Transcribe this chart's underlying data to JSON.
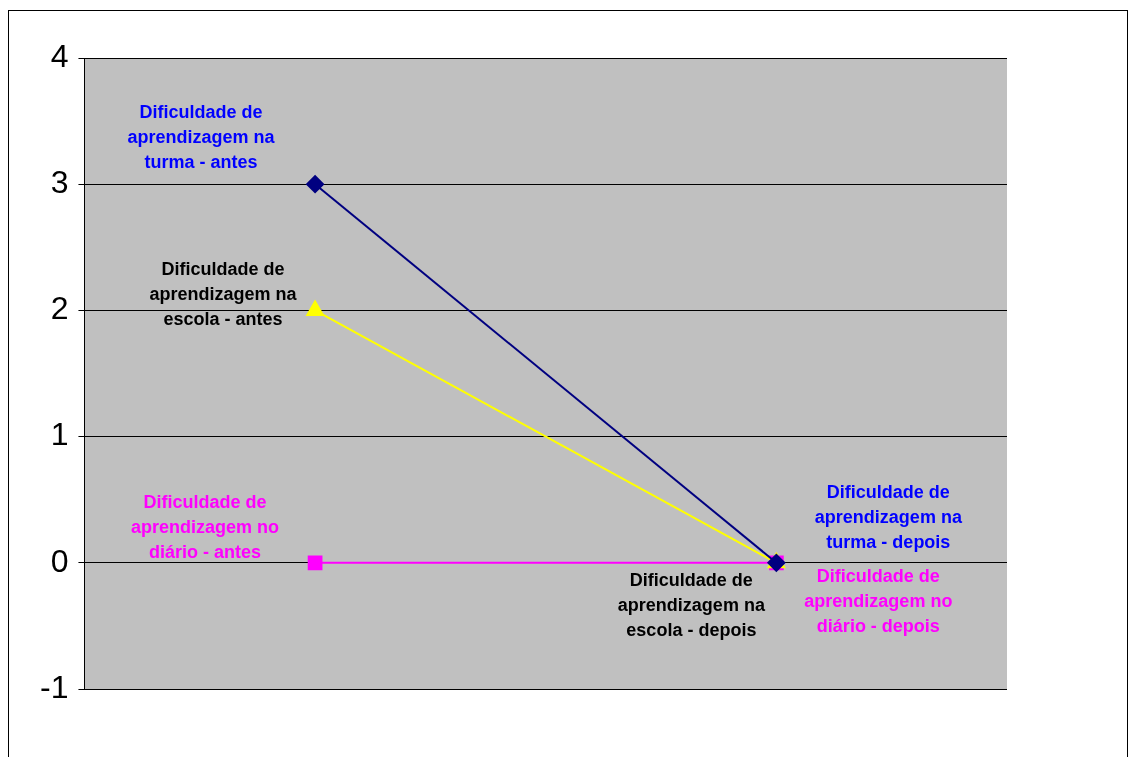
{
  "chart_data": {
    "type": "line",
    "categories": [
      null,
      null
    ],
    "series": [
      {
        "color": "#000080",
        "marker": "diamond",
        "values": [
          3,
          0
        ],
        "value_labels": [
          "Dificuldade de aprendizagem na turma - antes",
          "Dificuldade de aprendizagem na turma - depois"
        ]
      },
      {
        "color": "#ffff00",
        "marker": "triangle",
        "values": [
          2,
          0
        ],
        "value_labels": [
          "Dificuldade de aprendizagem na escola - antes",
          "Dificuldade de aprendizagem na escola - depois"
        ]
      },
      {
        "color": "#ff00ff",
        "marker": "square",
        "values": [
          0,
          0
        ],
        "value_labels": [
          "Dificuldade de aprendizagem no diário - antes",
          "Dificuldade de aprendizagem no diário - depois"
        ]
      }
    ],
    "ylim": [
      -1,
      4
    ],
    "yticks": [
      -1,
      0,
      1,
      2,
      3,
      4
    ],
    "grid": "y",
    "legend": false,
    "tick_labels": "y"
  }
}
